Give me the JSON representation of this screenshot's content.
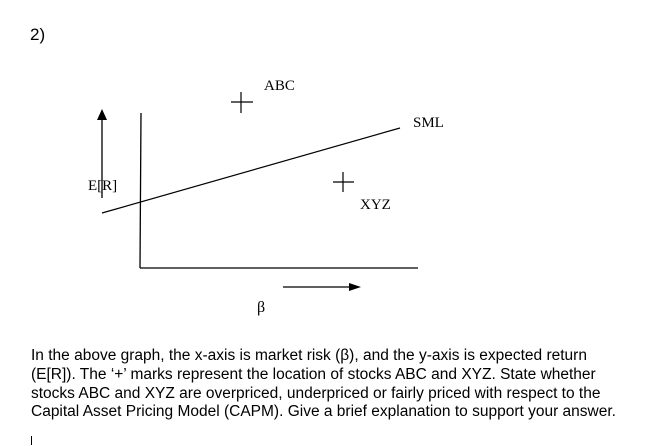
{
  "question": {
    "number": "2)",
    "text": "In the above graph, the x-axis is market risk (β), and the y-axis is expected return (E[R]). The ‘+’ marks represent the location of stocks ABC and XYZ.  State whether stocks ABC and XYZ are overpriced, underpriced or fairly priced with respect to the Capital Asset Pricing Model (CAPM). Give a brief explanation to support your answer."
  },
  "figure": {
    "y_axis_label": "E[R]",
    "x_axis_label": "β",
    "line_label": "SML",
    "stocks": [
      {
        "name": "ABC"
      },
      {
        "name": "XYZ"
      }
    ]
  }
}
